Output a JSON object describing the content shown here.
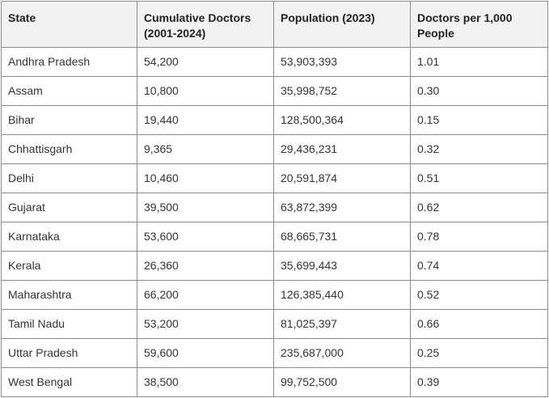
{
  "table": {
    "headers": {
      "state": "State",
      "doctors_line1": "Cumulative Doctors",
      "doctors_line2": "(2001-2024)",
      "population": "Population (2023)",
      "per1000_line1": "Doctors per 1,000",
      "per1000_line2": "People"
    },
    "rows": [
      [
        "Andhra Pradesh",
        "54,200",
        "53,903,393",
        "1.01"
      ],
      [
        "Assam",
        "10,800",
        "35,998,752",
        "0.30"
      ],
      [
        "Bihar",
        "19,440",
        "128,500,364",
        "0.15"
      ],
      [
        "Chhattisgarh",
        "9,365",
        "29,436,231",
        "0.32"
      ],
      [
        "Delhi",
        "10,460",
        "20,591,874",
        "0.51"
      ],
      [
        "Gujarat",
        "39,500",
        "63,872,399",
        "0.62"
      ],
      [
        "Karnataka",
        "53,600",
        "68,665,731",
        "0.78"
      ],
      [
        "Kerala",
        "26,360",
        "35,699,443",
        "0.74"
      ],
      [
        "Maharashtra",
        "66,200",
        "126,385,440",
        "0.52"
      ],
      [
        "Tamil Nadu",
        "53,200",
        "81,025,397",
        "0.66"
      ],
      [
        "Uttar Pradesh",
        "59,600",
        "235,687,000",
        "0.25"
      ],
      [
        "West Bengal",
        "38,500",
        "99,752,500",
        "0.39"
      ]
    ]
  }
}
